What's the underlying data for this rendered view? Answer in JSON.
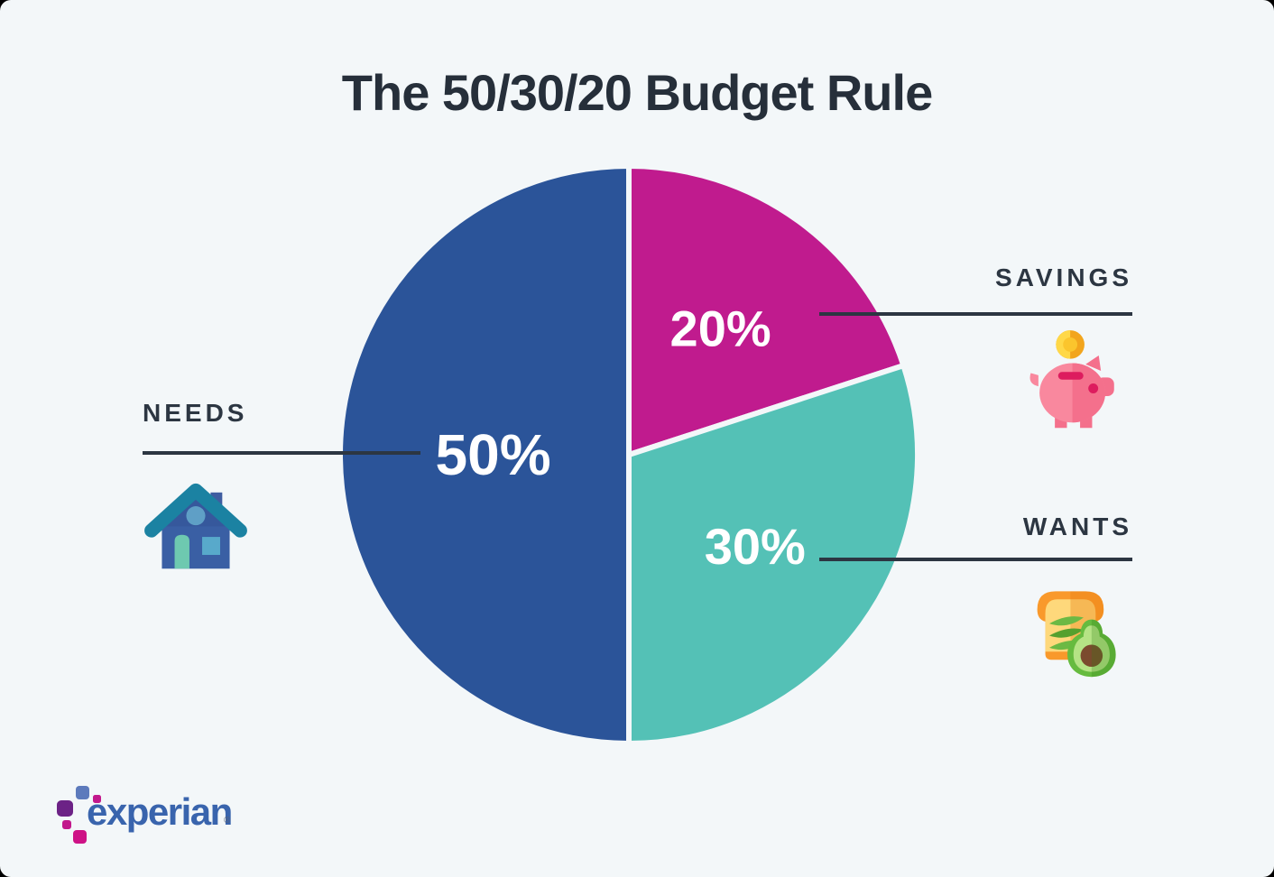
{
  "title": "The 50/30/20 Budget Rule",
  "chart_data": {
    "type": "pie",
    "title": "The 50/30/20 Budget Rule",
    "start_angle_deg": -90,
    "direction": "clockwise",
    "background_color": "#f3f7f9",
    "label_color": "#ffffff",
    "leader_line_color": "#2c3642",
    "slices": [
      {
        "label": "SAVINGS",
        "value": 20,
        "display": "20%",
        "color": "#c01b8e",
        "icon": "piggy-bank-icon"
      },
      {
        "label": "WANTS",
        "value": 30,
        "display": "30%",
        "color": "#54c1b6",
        "icon": "avocado-toast-icon"
      },
      {
        "label": "NEEDS",
        "value": 50,
        "display": "50%",
        "color": "#2b5499",
        "icon": "house-icon"
      }
    ]
  },
  "callouts": {
    "needs": {
      "label": "NEEDS",
      "icon": "house-icon"
    },
    "savings": {
      "label": "SAVINGS",
      "icon": "piggy-bank-icon"
    },
    "wants": {
      "label": "WANTS",
      "icon": "avocado-toast-icon"
    }
  },
  "footer": {
    "brand": "experian",
    "registered_mark": "®"
  }
}
